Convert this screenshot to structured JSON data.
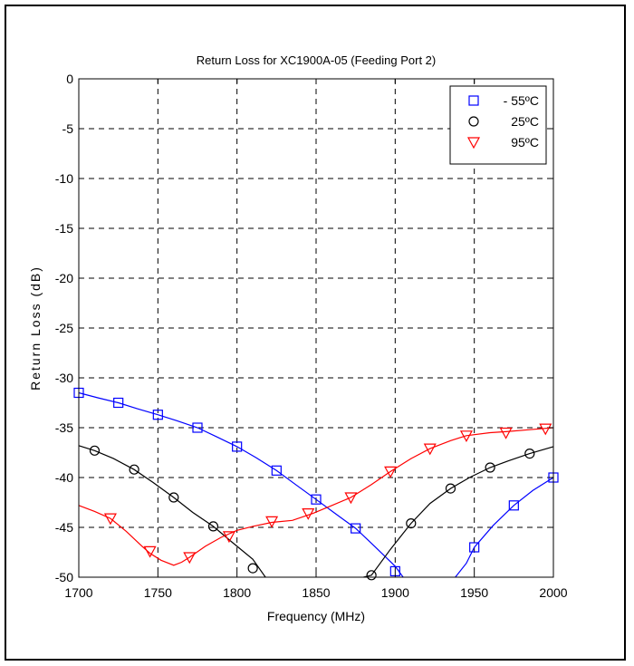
{
  "chart_data": {
    "type": "line",
    "title": "Return Loss for XC1900A-05 (Feeding Port 2)",
    "xlabel": "Frequency (MHz)",
    "ylabel": "Return Loss (dB)",
    "xlim": [
      1700,
      2000
    ],
    "ylim": [
      -50,
      0
    ],
    "xticks": [
      1700,
      1750,
      1800,
      1850,
      1900,
      1950,
      2000
    ],
    "yticks": [
      0,
      -5,
      -10,
      -15,
      -20,
      -25,
      -30,
      -35,
      -40,
      -45,
      -50
    ],
    "grid": true,
    "legend_position": "top-right",
    "series": [
      {
        "name": "- 55ºC",
        "color": "#0000ff",
        "marker": "square",
        "line": [
          [
            [
              1700,
              -31.5
            ],
            [
              1712,
              -32.0
            ],
            [
              1725,
              -32.5
            ],
            [
              1737,
              -33.1
            ],
            [
              1750,
              -33.7
            ],
            [
              1762,
              -34.3
            ],
            [
              1775,
              -35.0
            ],
            [
              1787,
              -35.9
            ],
            [
              1800,
              -36.9
            ],
            [
              1812,
              -38.0
            ],
            [
              1825,
              -39.3
            ],
            [
              1837,
              -40.7
            ],
            [
              1850,
              -42.2
            ],
            [
              1862,
              -43.6
            ],
            [
              1875,
              -45.1
            ],
            [
              1887,
              -46.9
            ],
            [
              1900,
              -48.9
            ],
            [
              1905,
              -50.0
            ]
          ],
          [
            [
              1938,
              -50.0
            ],
            [
              1945,
              -48.6
            ],
            [
              1950,
              -47.0
            ],
            [
              1962,
              -44.8
            ],
            [
              1975,
              -42.8
            ],
            [
              1987,
              -41.3
            ],
            [
              2000,
              -40.0
            ]
          ]
        ],
        "markers": [
          [
            1700,
            -31.5
          ],
          [
            1725,
            -32.5
          ],
          [
            1750,
            -33.7
          ],
          [
            1775,
            -35.0
          ],
          [
            1800,
            -36.9
          ],
          [
            1825,
            -39.3
          ],
          [
            1850,
            -42.2
          ],
          [
            1875,
            -45.1
          ],
          [
            1900,
            -49.4
          ],
          [
            1950,
            -47.0
          ],
          [
            1975,
            -42.8
          ],
          [
            2000,
            -40.0
          ]
        ]
      },
      {
        "name": "25ºC",
        "color": "#000000",
        "marker": "circle",
        "line": [
          [
            [
              1700,
              -36.8
            ],
            [
              1710,
              -37.3
            ],
            [
              1722,
              -38.1
            ],
            [
              1735,
              -39.2
            ],
            [
              1747,
              -40.5
            ],
            [
              1760,
              -42.0
            ],
            [
              1772,
              -43.5
            ],
            [
              1785,
              -44.9
            ],
            [
              1797,
              -46.5
            ],
            [
              1810,
              -48.2
            ],
            [
              1818,
              -50.0
            ]
          ],
          [
            [
              1880,
              -50.0
            ],
            [
              1885,
              -49.8
            ],
            [
              1897,
              -47.2
            ],
            [
              1910,
              -44.6
            ],
            [
              1922,
              -42.6
            ],
            [
              1935,
              -41.1
            ],
            [
              1947,
              -40.0
            ],
            [
              1960,
              -39.0
            ],
            [
              1972,
              -38.3
            ],
            [
              1985,
              -37.6
            ],
            [
              2000,
              -36.9
            ]
          ]
        ],
        "markers": [
          [
            1710,
            -37.3
          ],
          [
            1735,
            -39.2
          ],
          [
            1760,
            -42.0
          ],
          [
            1785,
            -44.9
          ],
          [
            1810,
            -49.1
          ],
          [
            1885,
            -49.8
          ],
          [
            1910,
            -44.6
          ],
          [
            1935,
            -41.1
          ],
          [
            1960,
            -39.0
          ],
          [
            1985,
            -37.6
          ]
        ]
      },
      {
        "name": "95ºC",
        "color": "#ff0000",
        "marker": "triangle-down",
        "line": [
          [
            [
              1700,
              -42.8
            ],
            [
              1710,
              -43.4
            ],
            [
              1720,
              -44.1
            ],
            [
              1730,
              -45.4
            ],
            [
              1740,
              -46.9
            ],
            [
              1745,
              -47.6
            ],
            [
              1752,
              -48.3
            ],
            [
              1760,
              -48.8
            ],
            [
              1765,
              -48.5
            ],
            [
              1770,
              -48.0
            ],
            [
              1780,
              -46.9
            ],
            [
              1790,
              -46.0
            ],
            [
              1800,
              -45.3
            ],
            [
              1810,
              -44.9
            ],
            [
              1822,
              -44.5
            ],
            [
              1835,
              -44.3
            ],
            [
              1848,
              -43.6
            ],
            [
              1860,
              -42.8
            ],
            [
              1872,
              -42.0
            ],
            [
              1885,
              -40.7
            ],
            [
              1897,
              -39.4
            ],
            [
              1910,
              -38.1
            ],
            [
              1922,
              -37.1
            ],
            [
              1935,
              -36.3
            ],
            [
              1945,
              -35.8
            ],
            [
              1960,
              -35.5
            ],
            [
              1970,
              -35.4
            ],
            [
              1985,
              -35.2
            ],
            [
              2000,
              -35.0
            ]
          ]
        ],
        "markers": [
          [
            1720,
            -44.1
          ],
          [
            1745,
            -47.4
          ],
          [
            1770,
            -48.0
          ],
          [
            1795,
            -45.9
          ],
          [
            1822,
            -44.4
          ],
          [
            1845,
            -43.6
          ],
          [
            1872,
            -42.0
          ],
          [
            1897,
            -39.4
          ],
          [
            1922,
            -37.1
          ],
          [
            1945,
            -35.8
          ],
          [
            1970,
            -35.5
          ],
          [
            1995,
            -35.1
          ]
        ]
      }
    ]
  }
}
